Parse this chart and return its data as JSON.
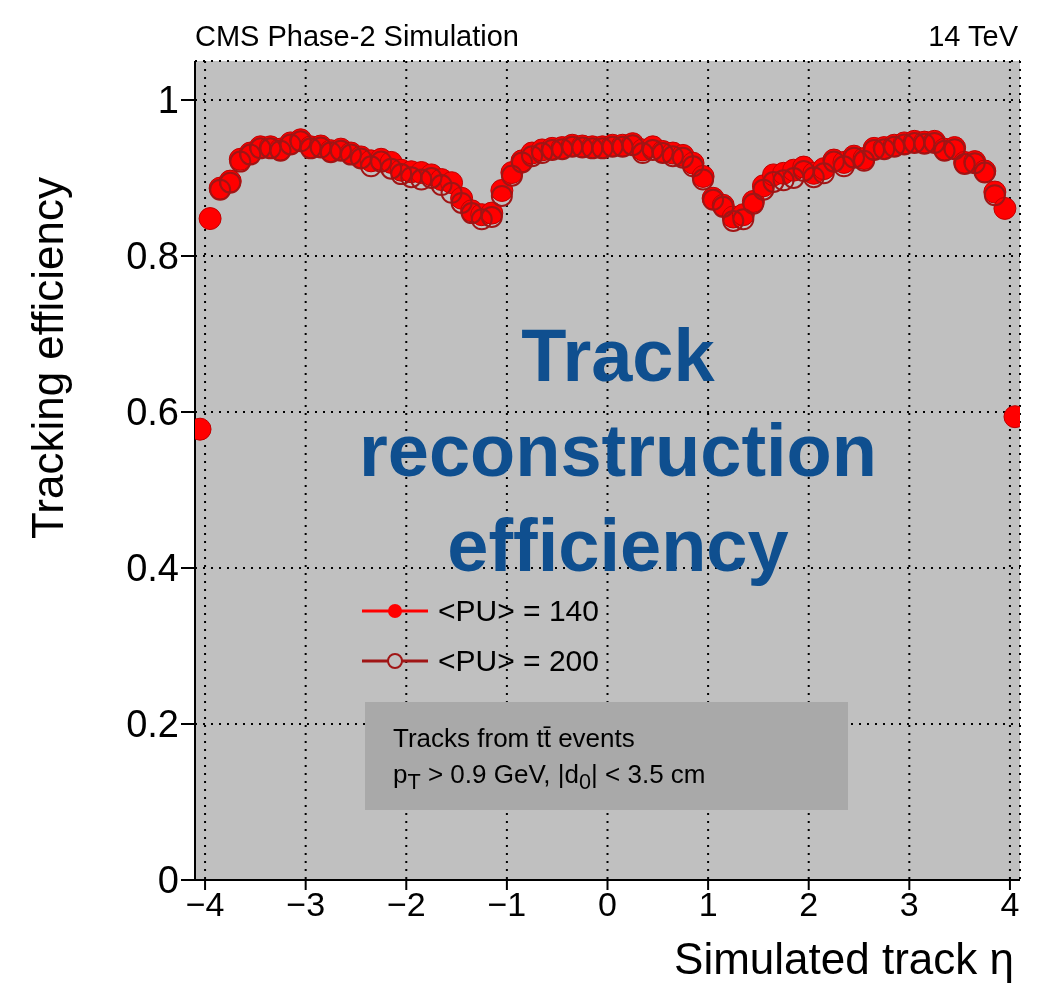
{
  "chart_data": {
    "type": "scatter",
    "title": "CMS Phase-2 Simulation",
    "subtitle": "14 TeV",
    "xlabel": "Simulated track η",
    "ylabel": "Tracking efficiency",
    "x": [
      -4.05,
      -3.95,
      -3.85,
      -3.75,
      -3.65,
      -3.55,
      -3.45,
      -3.35,
      -3.25,
      -3.15,
      -3.05,
      -2.95,
      -2.85,
      -2.75,
      -2.65,
      -2.55,
      -2.45,
      -2.35,
      -2.25,
      -2.15,
      -2.05,
      -1.95,
      -1.85,
      -1.75,
      -1.65,
      -1.55,
      -1.45,
      -1.35,
      -1.25,
      -1.15,
      -1.05,
      -0.95,
      -0.85,
      -0.75,
      -0.65,
      -0.55,
      -0.45,
      -0.35,
      -0.25,
      -0.15,
      -0.05,
      0.05,
      0.15,
      0.25,
      0.35,
      0.45,
      0.55,
      0.65,
      0.75,
      0.85,
      0.95,
      1.05,
      1.15,
      1.25,
      1.35,
      1.45,
      1.55,
      1.65,
      1.75,
      1.85,
      1.95,
      2.05,
      2.15,
      2.25,
      2.35,
      2.45,
      2.55,
      2.65,
      2.75,
      2.85,
      2.95,
      3.05,
      3.15,
      3.25,
      3.35,
      3.45,
      3.55,
      3.65,
      3.75,
      3.85,
      3.95,
      4.05
    ],
    "series": [
      {
        "name": "<PU> = 140",
        "color": "#ff0000",
        "values": [
          0.578,
          0.848,
          0.887,
          0.896,
          0.924,
          0.932,
          0.94,
          0.94,
          0.937,
          0.945,
          0.949,
          0.94,
          0.941,
          0.935,
          0.937,
          0.932,
          0.927,
          0.922,
          0.924,
          0.92,
          0.91,
          0.908,
          0.907,
          0.904,
          0.898,
          0.894,
          0.874,
          0.858,
          0.853,
          0.855,
          0.884,
          0.907,
          0.922,
          0.932,
          0.936,
          0.938,
          0.939,
          0.942,
          0.941,
          0.94,
          0.94,
          0.942,
          0.942,
          0.944,
          0.936,
          0.94,
          0.934,
          0.932,
          0.929,
          0.919,
          0.902,
          0.874,
          0.865,
          0.85,
          0.853,
          0.87,
          0.89,
          0.904,
          0.906,
          0.91,
          0.914,
          0.906,
          0.912,
          0.923,
          0.92,
          0.928,
          0.925,
          0.938,
          0.939,
          0.942,
          0.945,
          0.947,
          0.946,
          0.947,
          0.937,
          0.939,
          0.92,
          0.921,
          0.909,
          0.882,
          0.861,
          0.594
        ]
      },
      {
        "name": "<PU> = 200",
        "color": "#a01515",
        "values": [
          null,
          null,
          0.885,
          0.894,
          0.921,
          0.93,
          0.938,
          0.938,
          0.935,
          0.943,
          0.947,
          0.938,
          0.939,
          0.933,
          0.935,
          0.93,
          0.925,
          0.915,
          0.921,
          0.912,
          0.905,
          0.901,
          0.898,
          0.9,
          0.891,
          0.881,
          0.868,
          0.855,
          0.847,
          0.85,
          0.877,
          0.903,
          0.92,
          0.928,
          0.932,
          0.936,
          0.937,
          0.94,
          0.939,
          0.938,
          0.938,
          0.94,
          0.94,
          0.942,
          0.932,
          0.936,
          0.932,
          0.928,
          0.926,
          0.915,
          0.898,
          0.872,
          0.863,
          0.845,
          0.847,
          0.867,
          0.885,
          0.895,
          0.897,
          0.9,
          0.909,
          0.901,
          0.906,
          0.921,
          0.915,
          0.926,
          0.922,
          0.936,
          0.937,
          0.94,
          0.943,
          0.945,
          0.944,
          0.945,
          0.935,
          0.937,
          0.918,
          0.919,
          0.907,
          0.878,
          null,
          null
        ]
      }
    ],
    "xlim": [
      -4.1,
      4.1
    ],
    "xticks": [
      -4,
      -3,
      -2,
      -1,
      0,
      1,
      2,
      3,
      4
    ],
    "ylim": [
      0,
      1.05
    ],
    "yticks": [
      0,
      0.2,
      0.4,
      0.6,
      0.8,
      1
    ],
    "grid": true,
    "marker": "circle",
    "legend": "bottom left",
    "annotations": [
      "Track reconstruction efficiency",
      "Tracks from tt̄ events",
      "p$_{T}$ > 0.9 GeV, |d$_{0}$| < 3.5 cm"
    ]
  }
}
